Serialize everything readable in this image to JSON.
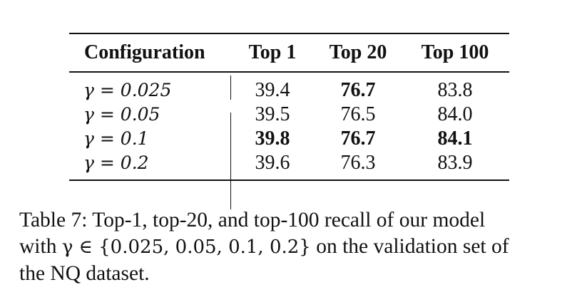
{
  "table": {
    "headers": {
      "configuration": "Configuration",
      "top1": "Top 1",
      "top20": "Top 20",
      "top100": "Top 100"
    },
    "rows": [
      {
        "gamma": "γ = 0.025",
        "top1": "39.4",
        "top20": "76.7",
        "top100": "83.8"
      },
      {
        "gamma": "γ = 0.05",
        "top1": "39.5",
        "top20": "76.5",
        "top100": "84.0"
      },
      {
        "gamma": "γ = 0.1",
        "top1": "39.8",
        "top20": "76.7",
        "top100": "84.1"
      },
      {
        "gamma": "γ = 0.2",
        "top1": "39.6",
        "top20": "76.3",
        "top100": "83.9"
      }
    ]
  },
  "caption": {
    "line1": "Table 7: Top-1, top-20, and top-100 recall of our model",
    "line2_prefix": "with ",
    "line2_math": "γ ∈ {0.025, 0.05, 0.1, 0.2}",
    "line2_suffix": " on the validation set of",
    "line3": "the NQ dataset."
  }
}
